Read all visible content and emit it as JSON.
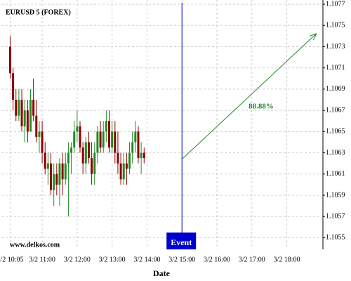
{
  "chart_data": {
    "type": "candlestick",
    "title": "EURUSD 5 (FOREX)",
    "xlabel": "Date",
    "watermark": "www.delkos.com",
    "up_color": "#228b22",
    "down_color": "#8b0000",
    "grid": true,
    "x": [
      "3/2 10:05",
      "3/2 10:10",
      "3/2 10:15",
      "3/2 10:20",
      "3/2 10:25",
      "3/2 10:30",
      "3/2 10:35",
      "3/2 10:40",
      "3/2 10:45",
      "3/2 10:50",
      "3/2 10:55",
      "3/2 11:00",
      "3/2 11:05",
      "3/2 11:10",
      "3/2 11:15",
      "3/2 11:20",
      "3/2 11:25",
      "3/2 11:30",
      "3/2 11:35",
      "3/2 11:40",
      "3/2 11:45",
      "3/2 11:50",
      "3/2 11:55",
      "3/2 12:00",
      "3/2 12:05",
      "3/2 12:10",
      "3/2 12:15",
      "3/2 12:20",
      "3/2 12:25",
      "3/2 12:30",
      "3/2 12:35",
      "3/2 12:40",
      "3/2 12:45",
      "3/2 12:50",
      "3/2 12:55",
      "3/2 13:00",
      "3/2 13:05",
      "3/2 13:10",
      "3/2 13:15",
      "3/2 13:20",
      "3/2 13:25",
      "3/2 13:30",
      "3/2 13:35",
      "3/2 13:40",
      "3/2 13:45",
      "3/2 13:50",
      "3/2 13:55"
    ],
    "open": [
      1.1073,
      1.10705,
      1.1068,
      1.10665,
      1.1068,
      1.10655,
      1.1067,
      1.1065,
      1.1068,
      1.10665,
      1.10645,
      1.1065,
      1.1063,
      1.10615,
      1.1062,
      1.10595,
      1.1061,
      1.106,
      1.1062,
      1.10605,
      1.1062,
      1.1063,
      1.10635,
      1.1065,
      1.10655,
      1.10635,
      1.1062,
      1.1064,
      1.10625,
      1.1061,
      1.1063,
      1.1065,
      1.10635,
      1.1065,
      1.1066,
      1.10635,
      1.1065,
      1.1063,
      1.1062,
      1.10605,
      1.1062,
      1.10615,
      1.1063,
      1.1064,
      1.1065,
      1.10625,
      1.1063
    ],
    "high": [
      1.1074,
      1.1071,
      1.1069,
      1.1069,
      1.1069,
      1.1068,
      1.1068,
      1.1069,
      1.107,
      1.1068,
      1.1066,
      1.1066,
      1.1064,
      1.1063,
      1.1063,
      1.1062,
      1.1062,
      1.10625,
      1.1063,
      1.1063,
      1.1064,
      1.1064,
      1.1066,
      1.1067,
      1.1066,
      1.1064,
      1.10645,
      1.1065,
      1.1064,
      1.1064,
      1.10655,
      1.1066,
      1.1066,
      1.1067,
      1.1067,
      1.1066,
      1.1066,
      1.1065,
      1.1063,
      1.1063,
      1.1063,
      1.1064,
      1.1065,
      1.1066,
      1.10655,
      1.1064,
      1.10635
    ],
    "low": [
      1.107,
      1.1067,
      1.1066,
      1.1066,
      1.1065,
      1.1064,
      1.1064,
      1.1065,
      1.1066,
      1.1064,
      1.1063,
      1.1062,
      1.1061,
      1.106,
      1.1059,
      1.1058,
      1.1059,
      1.1058,
      1.1059,
      1.106,
      1.1057,
      1.1061,
      1.1063,
      1.1064,
      1.1063,
      1.1061,
      1.1061,
      1.1062,
      1.106,
      1.106,
      1.1062,
      1.1063,
      1.1063,
      1.1064,
      1.1063,
      1.1063,
      1.1062,
      1.1061,
      1.106,
      1.106,
      1.106,
      1.1061,
      1.1062,
      1.1063,
      1.1062,
      1.1061,
      1.1062
    ],
    "close": [
      1.10705,
      1.1068,
      1.10665,
      1.1068,
      1.10655,
      1.1067,
      1.1065,
      1.1068,
      1.10665,
      1.10645,
      1.1065,
      1.1063,
      1.10615,
      1.1062,
      1.10595,
      1.1061,
      1.106,
      1.1062,
      1.10605,
      1.1062,
      1.1063,
      1.10635,
      1.1065,
      1.10655,
      1.10635,
      1.1062,
      1.1064,
      1.10625,
      1.1061,
      1.1063,
      1.1065,
      1.10635,
      1.1065,
      1.1066,
      1.10635,
      1.1065,
      1.1063,
      1.1062,
      1.10605,
      1.1062,
      1.10615,
      1.1063,
      1.1064,
      1.1065,
      1.10625,
      1.1063,
      1.10625
    ],
    "xlim": [
      "3/2 09:50",
      "3/2 19:02"
    ],
    "xticks": [
      "3/2 10:05",
      "3/2 11:00",
      "3/2 12:00",
      "3/2 13:00",
      "3/2 14:00",
      "3/2 15:00",
      "3/2 16:00",
      "3/2 17:00",
      "3/2 18:00"
    ],
    "ylim": [
      1.10539,
      1.10774
    ],
    "yticks": [
      1.1055,
      1.1057,
      1.1059,
      1.1061,
      1.1063,
      1.1065,
      1.1067,
      1.1069,
      1.1071,
      1.1073,
      1.1075,
      1.1077
    ],
    "event": {
      "x": "3/2 15:00",
      "label": "Event",
      "color": "#0000cc"
    },
    "arrow": {
      "x": [
        "3/2 15:00",
        "3/2 18:50"
      ],
      "y": [
        1.10624,
        1.10742
      ],
      "label": "88.88%",
      "color": "#228b22"
    }
  }
}
